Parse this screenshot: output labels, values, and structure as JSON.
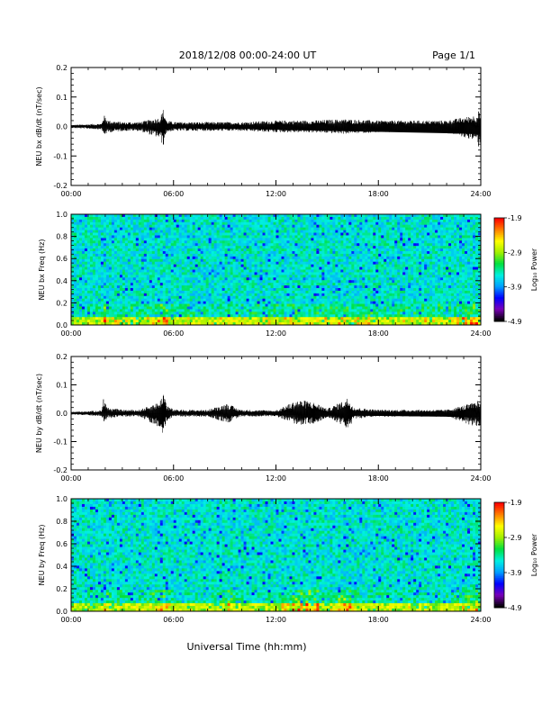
{
  "header": {
    "date_range": "2018/12/08  00:00-24:00 UT",
    "page": "Page 1/1"
  },
  "xaxis": {
    "label": "Universal Time (hh:mm)",
    "ticks": [
      "00:00",
      "06:00",
      "12:00",
      "18:00",
      "24:00"
    ]
  },
  "colorbar": {
    "label": "Log₁₀ Power",
    "ticks": [
      "-1.9",
      "-2.9",
      "-3.9",
      "-4.9"
    ],
    "colors": [
      "#000000",
      "#7a00b8",
      "#0000ff",
      "#00a0ff",
      "#00f0e0",
      "#00e040",
      "#a0f000",
      "#ffff00",
      "#ff8000",
      "#ff0000"
    ]
  },
  "chart_data": [
    {
      "type": "line",
      "ylabel": "NEU bx dB/dt (nT/sec)",
      "xlim": [
        0,
        24
      ],
      "ylim": [
        -0.2,
        0.2
      ],
      "y_ticks": [
        "0.2",
        "0.1",
        "0.0",
        "-0.1",
        "-0.2"
      ],
      "series": [
        {
          "x": [
            0,
            1.8,
            1.9,
            2.2,
            3,
            4,
            5.2,
            5.4,
            5.5,
            5.6,
            6,
            8,
            10,
            12,
            14,
            16,
            18,
            20,
            22,
            23.8,
            23.9,
            24
          ],
          "y_upper": [
            0.005,
            0.01,
            0.04,
            0.02,
            0.015,
            0.015,
            0.03,
            0.06,
            0.04,
            0.02,
            0.015,
            0.015,
            0.015,
            0.02,
            0.02,
            0.025,
            0.02,
            0.02,
            0.02,
            0.04,
            0.06,
            0.03
          ],
          "y_lower": [
            -0.005,
            -0.01,
            -0.03,
            -0.02,
            -0.015,
            -0.015,
            -0.04,
            -0.07,
            -0.04,
            -0.02,
            -0.015,
            -0.015,
            -0.015,
            -0.02,
            -0.02,
            -0.025,
            -0.02,
            -0.02,
            -0.02,
            -0.05,
            -0.08,
            -0.03
          ]
        }
      ]
    },
    {
      "type": "heatmap",
      "ylabel": "NEU bx Freq (Hz)",
      "xlim": [
        0,
        24
      ],
      "ylim": [
        0,
        1
      ],
      "y_ticks": [
        "1.0",
        "0.8",
        "0.6",
        "0.4",
        "0.2",
        "0.0"
      ],
      "zlim": [
        -4.9,
        -1.9
      ]
    },
    {
      "type": "line",
      "ylabel": "NEU by dB/dt (nT/sec)",
      "xlim": [
        0,
        24
      ],
      "ylim": [
        -0.2,
        0.2
      ],
      "y_ticks": [
        "0.2",
        "0.1",
        "0.0",
        "-0.1",
        "-0.2"
      ],
      "series": [
        {
          "x": [
            0,
            1.8,
            1.9,
            2.1,
            3,
            4,
            5.2,
            5.4,
            5.6,
            6,
            8,
            9.2,
            9.6,
            10,
            12,
            13.2,
            13.8,
            14.4,
            15,
            16,
            16.2,
            16.6,
            18,
            20,
            22,
            23.8,
            23.9,
            24
          ],
          "y_upper": [
            0.005,
            0.01,
            0.06,
            0.02,
            0.012,
            0.012,
            0.04,
            0.085,
            0.03,
            0.012,
            0.012,
            0.035,
            0.02,
            0.012,
            0.01,
            0.045,
            0.045,
            0.035,
            0.015,
            0.045,
            0.055,
            0.02,
            0.012,
            0.012,
            0.012,
            0.04,
            0.065,
            0.02
          ],
          "y_lower": [
            -0.005,
            -0.01,
            -0.03,
            -0.02,
            -0.012,
            -0.012,
            -0.05,
            -0.085,
            -0.03,
            -0.012,
            -0.012,
            -0.035,
            -0.02,
            -0.012,
            -0.01,
            -0.04,
            -0.04,
            -0.035,
            -0.015,
            -0.045,
            -0.06,
            -0.02,
            -0.012,
            -0.012,
            -0.012,
            -0.05,
            -0.065,
            -0.02
          ]
        }
      ]
    },
    {
      "type": "heatmap",
      "ylabel": "NEU by Freq (Hz)",
      "xlim": [
        0,
        24
      ],
      "ylim": [
        0,
        1
      ],
      "y_ticks": [
        "1.0",
        "0.8",
        "0.6",
        "0.4",
        "0.2",
        "0.0"
      ],
      "zlim": [
        -4.9,
        -1.9
      ]
    }
  ]
}
